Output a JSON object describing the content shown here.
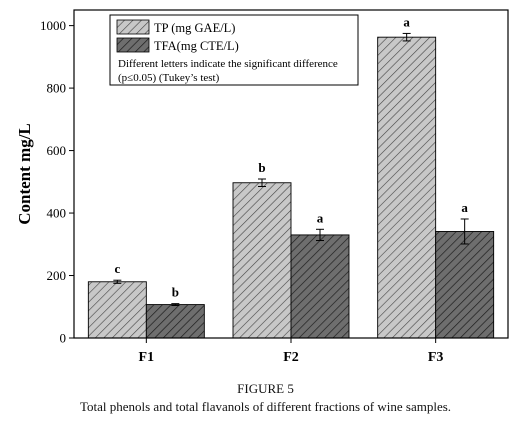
{
  "chart_data": {
    "type": "bar",
    "title": "",
    "xlabel": "",
    "ylabel": "Content mg/L",
    "categories": [
      "F1",
      "F2",
      "F3"
    ],
    "ylim": [
      0,
      1050
    ],
    "yticks": [
      0,
      200,
      400,
      600,
      800,
      1000
    ],
    "grid": false,
    "legend_position": "top-left",
    "series": [
      {
        "name": "TP (mg GAE/L)",
        "values": [
          180,
          497,
          963
        ],
        "errors": [
          5,
          12,
          12
        ],
        "letters": [
          "c",
          "b",
          "a"
        ],
        "fill": "#c8c8c8",
        "hatch": "#444444"
      },
      {
        "name": "TFA(mg CTE/L)",
        "values": [
          107,
          330,
          341
        ],
        "errors": [
          3,
          18,
          40
        ],
        "letters": [
          "b",
          "a",
          "a"
        ],
        "fill": "#6e6e6e",
        "hatch": "#1e1e1e"
      }
    ],
    "annotation_lines": [
      "Different letters indicate the significant difference",
      "(p≤0.05) (Tukey’s test)"
    ]
  },
  "caption": {
    "figure_number": "FIGURE 5",
    "text": "Total phenols and total flavanols of different fractions of wine samples."
  }
}
